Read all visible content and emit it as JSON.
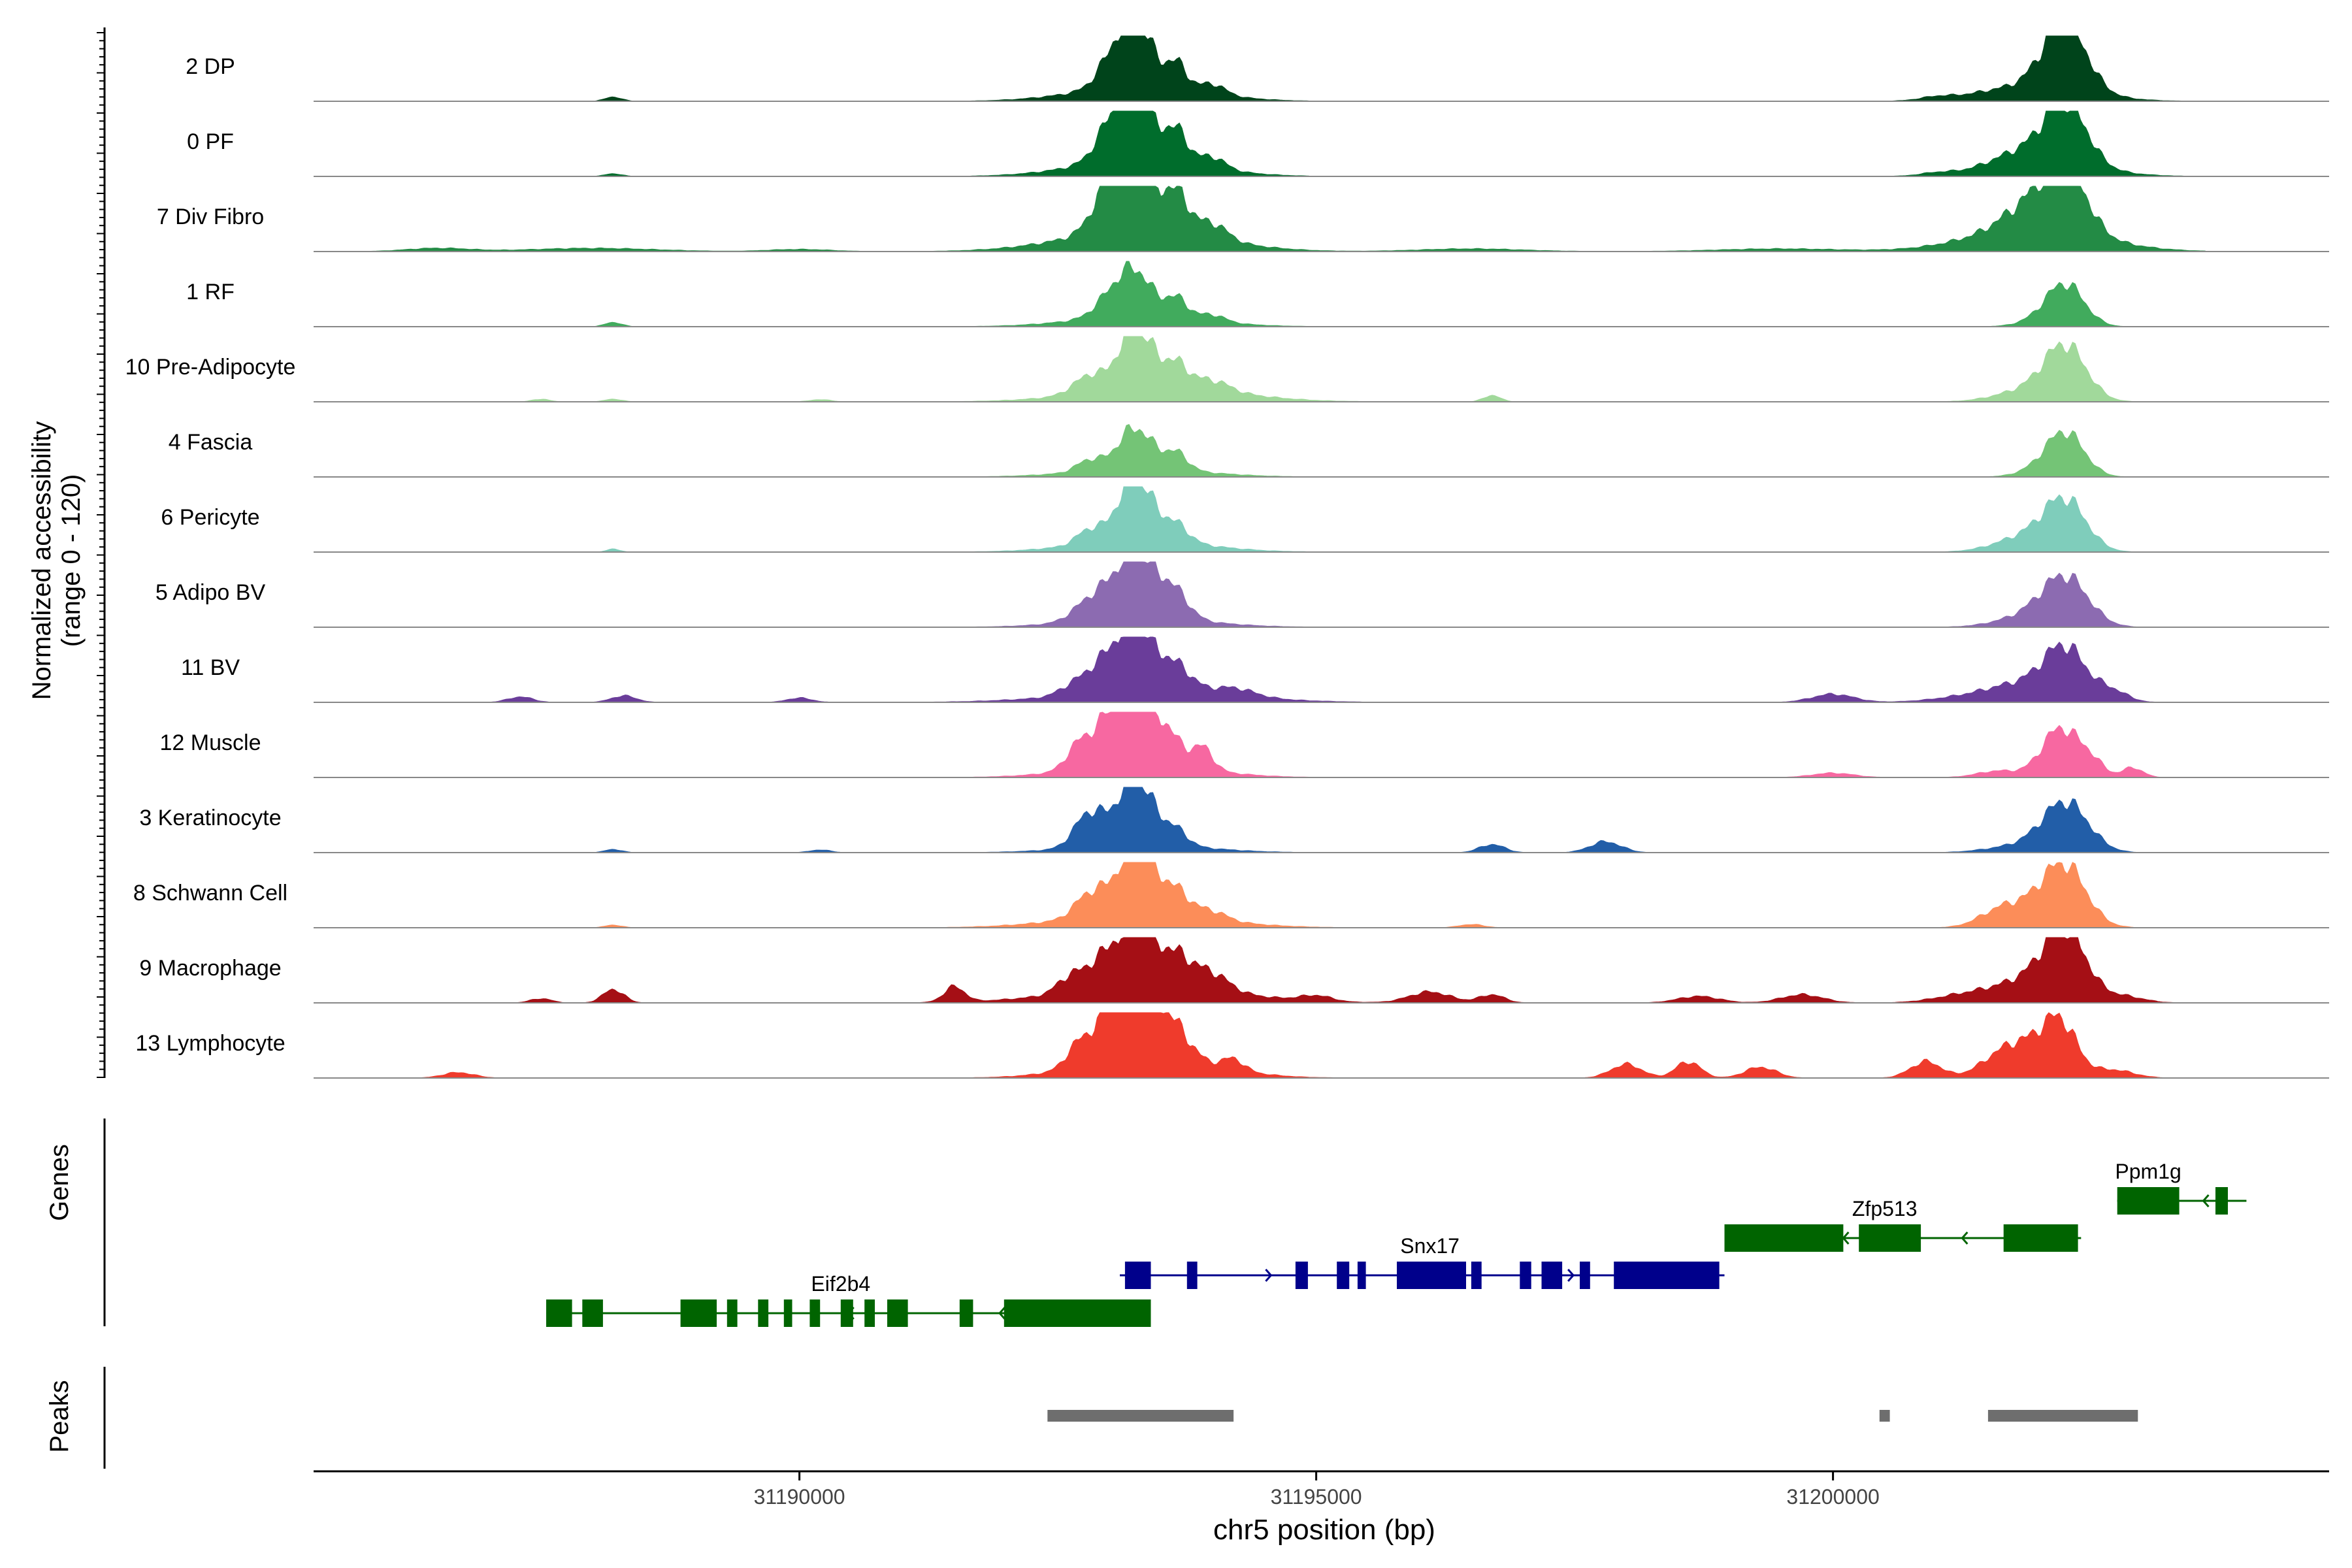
{
  "chart_data": {
    "type": "area",
    "title": "",
    "ylabel_line1": "Normalized accessibility",
    "ylabel_line2": "(range 0 - 120)",
    "xlabel": "chr5 position (bp)",
    "xlim": [
      31185300,
      31204800
    ],
    "ylim": [
      0,
      120
    ],
    "x_ticks": [
      31190000,
      31195000,
      31200000
    ],
    "x_tick_labels": [
      "31190000",
      "31195000",
      "31200000"
    ],
    "gene_track_label": "Genes",
    "peak_track_label": "Peaks",
    "tracks": [
      {
        "name": "2 DP",
        "color": "#00441b",
        "peaks": [
          [
            31188200,
            80,
            8
          ],
          [
            31193000,
            140,
            35
          ],
          [
            31193250,
            160,
            120
          ],
          [
            31193650,
            100,
            45
          ],
          [
            31194000,
            120,
            18
          ],
          [
            31193300,
            600,
            28
          ],
          [
            31201000,
            150,
            5
          ],
          [
            31202000,
            120,
            4
          ],
          [
            31202250,
            200,
            120
          ],
          [
            31201950,
            500,
            30
          ]
        ]
      },
      {
        "name": "0 PF",
        "color": "#006d2c",
        "peaks": [
          [
            31188200,
            80,
            5
          ],
          [
            31193000,
            150,
            45
          ],
          [
            31193250,
            170,
            120
          ],
          [
            31193650,
            110,
            55
          ],
          [
            31194000,
            120,
            20
          ],
          [
            31193300,
            600,
            32
          ],
          [
            31201000,
            150,
            4
          ],
          [
            31201800,
            250,
            18
          ],
          [
            31202250,
            200,
            110
          ],
          [
            31202000,
            500,
            30
          ]
        ]
      },
      {
        "name": "7 Div Fibro",
        "color": "#238b45",
        "peaks": [
          [
            31186500,
            300,
            6
          ],
          [
            31188000,
            600,
            6
          ],
          [
            31190000,
            300,
            4
          ],
          [
            31193000,
            160,
            70
          ],
          [
            31193250,
            180,
            120
          ],
          [
            31193650,
            120,
            70
          ],
          [
            31194000,
            140,
            28
          ],
          [
            31193300,
            700,
            40
          ],
          [
            31196500,
            500,
            5
          ],
          [
            31199500,
            600,
            5
          ],
          [
            31201900,
            250,
            40
          ],
          [
            31202250,
            200,
            110
          ],
          [
            31201950,
            600,
            45
          ]
        ]
      },
      {
        "name": "1 RF",
        "color": "#41ab5d",
        "peaks": [
          [
            31188200,
            80,
            8
          ],
          [
            31193000,
            150,
            30
          ],
          [
            31193250,
            160,
            80
          ],
          [
            31193650,
            110,
            35
          ],
          [
            31194000,
            120,
            12
          ],
          [
            31193300,
            600,
            20
          ],
          [
            31202000,
            200,
            10
          ],
          [
            31202250,
            180,
            75
          ]
        ]
      },
      {
        "name": "10 Pre-Adipocyte",
        "color": "#a1d99b",
        "peaks": [
          [
            31187500,
            80,
            5
          ],
          [
            31188200,
            80,
            5
          ],
          [
            31190200,
            100,
            4
          ],
          [
            31192600,
            100,
            5
          ],
          [
            31192800,
            120,
            30
          ],
          [
            31193250,
            170,
            110
          ],
          [
            31193650,
            120,
            40
          ],
          [
            31194000,
            160,
            18
          ],
          [
            31193500,
            700,
            28
          ],
          [
            31196700,
            80,
            12
          ],
          [
            31201900,
            300,
            22
          ],
          [
            31202250,
            200,
            95
          ]
        ]
      },
      {
        "name": "4 Fascia",
        "color": "#74c476",
        "peaks": [
          [
            31192800,
            120,
            20
          ],
          [
            31193250,
            170,
            75
          ],
          [
            31193650,
            110,
            30
          ],
          [
            31193300,
            600,
            15
          ],
          [
            31202000,
            200,
            12
          ],
          [
            31202250,
            180,
            78
          ]
        ]
      },
      {
        "name": "6 Pericyte",
        "color": "#7fcdbb",
        "peaks": [
          [
            31188200,
            60,
            6
          ],
          [
            31192800,
            120,
            25
          ],
          [
            31193250,
            170,
            115
          ],
          [
            31193650,
            120,
            30
          ],
          [
            31193300,
            600,
            22
          ],
          [
            31201900,
            300,
            30
          ],
          [
            31202250,
            200,
            85
          ]
        ]
      },
      {
        "name": "5 Adipo BV",
        "color": "#8c6bb1",
        "peaks": [
          [
            31192800,
            160,
            30
          ],
          [
            31193250,
            220,
            120
          ],
          [
            31193650,
            130,
            35
          ],
          [
            31193300,
            600,
            18
          ],
          [
            31201900,
            300,
            20
          ],
          [
            31202250,
            220,
            85
          ]
        ]
      },
      {
        "name": "11 BV",
        "color": "#6a3d9a",
        "peaks": [
          [
            31187300,
            120,
            10
          ],
          [
            31188300,
            120,
            12
          ],
          [
            31190000,
            120,
            8
          ],
          [
            31192600,
            120,
            10
          ],
          [
            31192900,
            180,
            45
          ],
          [
            31193250,
            180,
            120
          ],
          [
            31193650,
            150,
            45
          ],
          [
            31194200,
            200,
            15
          ],
          [
            31193400,
            800,
            20
          ],
          [
            31200000,
            200,
            15
          ],
          [
            31201500,
            400,
            15
          ],
          [
            31201900,
            300,
            25
          ],
          [
            31202250,
            200,
            90
          ],
          [
            31202700,
            150,
            20
          ]
        ]
      },
      {
        "name": "12 Muscle",
        "color": "#f768a1",
        "peaks": [
          [
            31192700,
            120,
            40
          ],
          [
            31193000,
            160,
            75
          ],
          [
            31193250,
            160,
            100
          ],
          [
            31193550,
            140,
            60
          ],
          [
            31193900,
            100,
            40
          ],
          [
            31193300,
            600,
            25
          ],
          [
            31200000,
            200,
            8
          ],
          [
            31201600,
            200,
            12
          ],
          [
            31202200,
            180,
            90
          ],
          [
            31202500,
            120,
            25
          ],
          [
            31202900,
            100,
            18
          ]
        ]
      },
      {
        "name": "3 Keratinocyte",
        "color": "#225ea8",
        "peaks": [
          [
            31188200,
            80,
            6
          ],
          [
            31190200,
            100,
            5
          ],
          [
            31192800,
            140,
            60
          ],
          [
            31193250,
            180,
            120
          ],
          [
            31193650,
            110,
            25
          ],
          [
            31193300,
            600,
            15
          ],
          [
            31196700,
            120,
            15
          ],
          [
            31197800,
            150,
            20
          ],
          [
            31201800,
            300,
            12
          ],
          [
            31202250,
            220,
            90
          ]
        ]
      },
      {
        "name": "8 Schwann Cell",
        "color": "#fc8d59",
        "peaks": [
          [
            31188200,
            80,
            5
          ],
          [
            31192800,
            140,
            40
          ],
          [
            31193250,
            190,
            120
          ],
          [
            31193650,
            140,
            40
          ],
          [
            31194000,
            140,
            15
          ],
          [
            31193300,
            700,
            25
          ],
          [
            31196500,
            120,
            6
          ],
          [
            31201600,
            200,
            22
          ],
          [
            31202000,
            300,
            40
          ],
          [
            31202250,
            200,
            90
          ]
        ]
      },
      {
        "name": "9 Macrophage",
        "color": "#a50f15",
        "peaks": [
          [
            31187500,
            100,
            8
          ],
          [
            31188200,
            100,
            25
          ],
          [
            31191500,
            100,
            28
          ],
          [
            31192600,
            120,
            25
          ],
          [
            31192900,
            160,
            45
          ],
          [
            31193250,
            180,
            110
          ],
          [
            31193650,
            160,
            55
          ],
          [
            31194000,
            160,
            30
          ],
          [
            31193400,
            800,
            30
          ],
          [
            31195000,
            150,
            10
          ],
          [
            31196100,
            200,
            20
          ],
          [
            31196700,
            120,
            15
          ],
          [
            31198700,
            200,
            12
          ],
          [
            31199700,
            200,
            15
          ],
          [
            31201300,
            300,
            15
          ],
          [
            31201900,
            300,
            40
          ],
          [
            31202250,
            200,
            120
          ],
          [
            31202800,
            200,
            12
          ]
        ]
      },
      {
        "name": "13 Lymphocyte",
        "color": "#ef3b2c",
        "peaks": [
          [
            31186700,
            150,
            10
          ],
          [
            31192700,
            120,
            40
          ],
          [
            31193050,
            160,
            90
          ],
          [
            31193300,
            200,
            120
          ],
          [
            31193650,
            150,
            40
          ],
          [
            31194200,
            100,
            20
          ],
          [
            31193400,
            600,
            40
          ],
          [
            31198000,
            150,
            25
          ],
          [
            31198600,
            120,
            30
          ],
          [
            31199300,
            150,
            20
          ],
          [
            31200900,
            150,
            30
          ],
          [
            31201600,
            200,
            35
          ],
          [
            31201900,
            200,
            50
          ],
          [
            31202200,
            160,
            95
          ],
          [
            31202700,
            200,
            15
          ]
        ]
      }
    ],
    "genes": [
      {
        "name": "Eif2b4",
        "color": "#006400",
        "row": 2,
        "start": 31187550,
        "end": 31193400,
        "strand": "-",
        "label_x": 31190400,
        "exons": [
          [
            31187550,
            31187800
          ],
          [
            31187900,
            31188100
          ],
          [
            31188850,
            31189200
          ],
          [
            31189300,
            31189400
          ],
          [
            31189600,
            31189700
          ],
          [
            31189850,
            31189930
          ],
          [
            31190100,
            31190200
          ],
          [
            31190400,
            31190520
          ],
          [
            31190630,
            31190730
          ],
          [
            31190850,
            31191050
          ],
          [
            31191550,
            31191680
          ],
          [
            31191980,
            31192800
          ],
          [
            31192650,
            31193400
          ]
        ]
      },
      {
        "name": "Snx17",
        "color": "#00008b",
        "row": 1,
        "start": 31193100,
        "end": 31198950,
        "strand": "+",
        "label_x": 31196100,
        "exons": [
          [
            31193150,
            31193400
          ],
          [
            31193750,
            31193850
          ],
          [
            31194800,
            31194920
          ],
          [
            31195200,
            31195320
          ],
          [
            31195400,
            31195480
          ],
          [
            31195780,
            31196450
          ],
          [
            31196500,
            31196600
          ],
          [
            31196970,
            31197080
          ],
          [
            31197180,
            31197380
          ],
          [
            31197550,
            31197650
          ],
          [
            31197880,
            31198900
          ]
        ]
      },
      {
        "name": "Zfp513",
        "color": "#006400",
        "row": 0,
        "start": 31198950,
        "end": 31202400,
        "strand": "-",
        "label_x": 31200500,
        "exons": [
          [
            31198950,
            31200100
          ],
          [
            31200250,
            31200850
          ],
          [
            31201650,
            31202370
          ]
        ]
      },
      {
        "name": "Ppm1g",
        "color": "#006400",
        "row": -1,
        "start": 31202750,
        "end": 31204000,
        "strand": "-",
        "label_x": 31203050,
        "exons": [
          [
            31202750,
            31203350
          ],
          [
            31203700,
            31203820
          ]
        ]
      }
    ],
    "peak_regions": [
      [
        31192400,
        31194200
      ],
      [
        31200450,
        31200550
      ],
      [
        31201500,
        31202950
      ]
    ]
  }
}
